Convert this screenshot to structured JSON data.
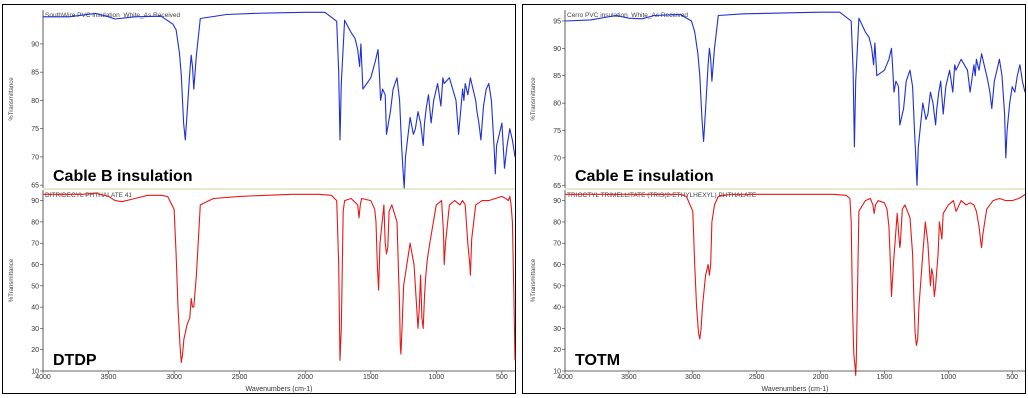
{
  "colors": {
    "top_trace": "#1f2fd6",
    "bottom_trace": "#e81818",
    "separator": "#c8d8a0"
  },
  "chart_data": [
    {
      "type": "line",
      "panel": "left",
      "xlabel": "Wavenumbers (cm-1)",
      "xlim": [
        4000,
        400
      ],
      "xticks": [
        4000,
        3500,
        3000,
        2500,
        2000,
        1500,
        1000,
        500
      ],
      "subplots": [
        {
          "name": "top",
          "trace_title": "SouthWire PVC insulation_White_As Received",
          "label": "Cable B insulation",
          "ylabel": "%Transmittance",
          "ylim": [
            64.5,
            96
          ],
          "yticks": [
            65,
            70,
            75,
            80,
            85,
            90
          ],
          "color": "#1f2fd6",
          "x": [
            4000,
            3800,
            3600,
            3500,
            3450,
            3300,
            3100,
            3010,
            2985,
            2960,
            2945,
            2928,
            2915,
            2900,
            2880,
            2870,
            2860,
            2850,
            2830,
            2800,
            2600,
            2400,
            2200,
            2000,
            1850,
            1760,
            1745,
            1735,
            1725,
            1700,
            1650,
            1620,
            1600,
            1585,
            1575,
            1560,
            1500,
            1465,
            1445,
            1435,
            1425,
            1410,
            1390,
            1380,
            1350,
            1330,
            1300,
            1280,
            1265,
            1255,
            1245,
            1235,
            1200,
            1175,
            1160,
            1140,
            1120,
            1100,
            1090,
            1075,
            1060,
            1040,
            1020,
            990,
            965,
            950,
            940,
            900,
            850,
            830,
            800,
            790,
            780,
            760,
            740,
            720,
            700,
            690,
            675,
            660,
            640,
            620,
            600,
            580,
            560,
            550,
            540,
            520,
            500,
            480,
            460,
            440,
            420,
            400
          ],
          "values": [
            94.8,
            94.8,
            95.4,
            94.8,
            94.4,
            94.8,
            94.9,
            93.5,
            92.5,
            88.5,
            84.5,
            76,
            73,
            78,
            85,
            88,
            86,
            82,
            88,
            94.5,
            95.2,
            95.4,
            95.5,
            95.6,
            95.6,
            94,
            85,
            73,
            83,
            94.2,
            92,
            91,
            89,
            86,
            90,
            82,
            84,
            87,
            89,
            85,
            80,
            82,
            81,
            74,
            78,
            82,
            84,
            80,
            72,
            68,
            64.5,
            70,
            77,
            74,
            75,
            78,
            76,
            72,
            76,
            79,
            81,
            76,
            80,
            83,
            79,
            84,
            83,
            84,
            80,
            74,
            82,
            80,
            83,
            81,
            84,
            82,
            80,
            78,
            76,
            73,
            79,
            82,
            83,
            80,
            72,
            67,
            72,
            74,
            76,
            68,
            72,
            75,
            73,
            70
          ]
        },
        {
          "name": "bottom",
          "trace_title": "DITRIDECYL PHTHALATE 41",
          "label": "DTDP",
          "ylabel": "%Transmittance",
          "ylim": [
            10,
            95
          ],
          "yticks": [
            10,
            20,
            30,
            40,
            50,
            60,
            70,
            80,
            90
          ],
          "color": "#e81818",
          "x": [
            4000,
            3700,
            3600,
            3500,
            3450,
            3400,
            3300,
            3200,
            3100,
            3050,
            3000,
            2985,
            2970,
            2955,
            2945,
            2935,
            2925,
            2900,
            2880,
            2870,
            2860,
            2850,
            2830,
            2800,
            2700,
            2500,
            2300,
            2100,
            2000,
            1900,
            1800,
            1760,
            1745,
            1735,
            1725,
            1710,
            1700,
            1650,
            1600,
            1590,
            1580,
            1570,
            1500,
            1470,
            1460,
            1450,
            1440,
            1430,
            1400,
            1390,
            1380,
            1370,
            1360,
            1340,
            1300,
            1290,
            1280,
            1275,
            1270,
            1260,
            1250,
            1200,
            1170,
            1140,
            1130,
            1120,
            1110,
            1100,
            1090,
            1080,
            1070,
            1050,
            1000,
            960,
            945,
            940,
            930,
            900,
            860,
            820,
            800,
            780,
            760,
            745,
            740,
            730,
            700,
            650,
            600,
            550,
            500,
            470,
            450,
            440,
            430,
            420,
            410,
            400
          ],
          "values": [
            93,
            93,
            93.5,
            92,
            90,
            89.5,
            91,
            92.5,
            92.5,
            92,
            86,
            65,
            40,
            22,
            14,
            18,
            25,
            32,
            35,
            44,
            40,
            40,
            55,
            88,
            91,
            92,
            92.5,
            93,
            93,
            93,
            92.5,
            90,
            60,
            15,
            30,
            85,
            90,
            91,
            88,
            82,
            88,
            91,
            90,
            86,
            80,
            60,
            48,
            70,
            88,
            70,
            65,
            68,
            85,
            88,
            80,
            60,
            40,
            22,
            18,
            32,
            50,
            70,
            60,
            30,
            40,
            55,
            35,
            30,
            45,
            55,
            62,
            70,
            88,
            90,
            75,
            60,
            70,
            88,
            90,
            88,
            90,
            88,
            70,
            60,
            55,
            72,
            88,
            90,
            90,
            91,
            92,
            91,
            90,
            92,
            88,
            80,
            50,
            15
          ]
        }
      ]
    },
    {
      "type": "line",
      "panel": "right",
      "xlabel": "Wavenumbers (cm-1)",
      "xlim": [
        4000,
        400
      ],
      "xticks": [
        4000,
        3500,
        3000,
        2500,
        2000,
        1500,
        1000,
        500
      ],
      "subplots": [
        {
          "name": "top",
          "trace_title": "Cerro PVC insulation_White_As Received",
          "label": "Cable E insulation",
          "ylabel": "%Transmittance",
          "ylim": [
            64.5,
            97
          ],
          "yticks": [
            65,
            70,
            75,
            80,
            85,
            90,
            95
          ],
          "color": "#1f2fd6",
          "x": [
            4000,
            3800,
            3600,
            3500,
            3400,
            3300,
            3100,
            3010,
            2985,
            2960,
            2945,
            2928,
            2915,
            2900,
            2880,
            2870,
            2860,
            2850,
            2830,
            2800,
            2600,
            2400,
            2200,
            2000,
            1850,
            1760,
            1745,
            1735,
            1725,
            1700,
            1650,
            1620,
            1600,
            1585,
            1575,
            1560,
            1500,
            1465,
            1445,
            1435,
            1425,
            1410,
            1390,
            1380,
            1350,
            1330,
            1300,
            1280,
            1265,
            1255,
            1245,
            1235,
            1200,
            1175,
            1160,
            1140,
            1120,
            1100,
            1090,
            1075,
            1060,
            1040,
            1020,
            990,
            965,
            950,
            940,
            900,
            850,
            830,
            800,
            790,
            780,
            760,
            740,
            720,
            700,
            690,
            675,
            660,
            640,
            620,
            600,
            580,
            560,
            550,
            540,
            520,
            500,
            480,
            460,
            440,
            420,
            400
          ],
          "values": [
            95,
            95.2,
            96,
            95.5,
            95.4,
            96,
            96.2,
            95,
            93,
            89,
            85,
            77,
            73,
            79,
            87,
            90,
            88,
            84,
            90,
            96,
            96.3,
            96.4,
            96.5,
            96.6,
            96.6,
            95,
            86,
            72,
            84,
            95.5,
            93,
            92,
            90,
            87,
            91,
            85,
            86,
            88,
            90,
            86,
            82,
            84,
            83,
            76,
            79,
            84,
            86,
            83,
            75,
            70,
            65,
            72,
            80,
            77,
            78,
            82,
            80,
            76,
            79,
            82,
            84,
            78,
            83,
            86,
            82,
            87,
            86,
            88,
            86,
            82,
            87,
            85,
            88,
            86,
            89,
            87,
            85,
            84,
            82,
            79,
            84,
            86,
            88,
            85,
            78,
            70,
            75,
            80,
            83,
            82,
            85,
            87,
            84,
            82
          ]
        },
        {
          "name": "bottom",
          "trace_title": "TRIOCTYL TRIMELLITATE (TRIS(2-ETHYLHEXYL) PHTHALATE",
          "label": "TOTM",
          "ylabel": "%Transmittance",
          "ylim": [
            10,
            95
          ],
          "yticks": [
            10,
            20,
            30,
            40,
            50,
            60,
            70,
            80,
            90
          ],
          "color": "#e81818",
          "x": [
            4000,
            3700,
            3500,
            3300,
            3100,
            3050,
            3000,
            2985,
            2970,
            2955,
            2945,
            2935,
            2925,
            2900,
            2880,
            2870,
            2860,
            2850,
            2830,
            2800,
            2700,
            2500,
            2300,
            2100,
            1900,
            1800,
            1770,
            1760,
            1750,
            1740,
            1730,
            1725,
            1720,
            1710,
            1700,
            1650,
            1610,
            1590,
            1580,
            1570,
            1550,
            1500,
            1480,
            1465,
            1460,
            1450,
            1445,
            1430,
            1400,
            1385,
            1380,
            1375,
            1360,
            1340,
            1300,
            1280,
            1270,
            1260,
            1250,
            1240,
            1230,
            1200,
            1180,
            1160,
            1140,
            1130,
            1120,
            1110,
            1100,
            1080,
            1070,
            1060,
            1050,
            1040,
            1020,
            1000,
            960,
            940,
            930,
            900,
            860,
            830,
            800,
            780,
            760,
            745,
            740,
            730,
            700,
            650,
            600,
            550,
            500,
            450,
            420,
            400
          ],
          "values": [
            93,
            93,
            93,
            93,
            93,
            92,
            85,
            60,
            40,
            28,
            25,
            30,
            40,
            55,
            60,
            55,
            60,
            80,
            88,
            92,
            93,
            93,
            93,
            93,
            93,
            92.5,
            91,
            80,
            40,
            18,
            12,
            8,
            15,
            50,
            85,
            90,
            91,
            88,
            84,
            88,
            90,
            89,
            86,
            78,
            70,
            55,
            45,
            60,
            84,
            72,
            68,
            70,
            86,
            88,
            82,
            65,
            45,
            28,
            22,
            25,
            40,
            65,
            80,
            70,
            50,
            58,
            55,
            45,
            50,
            65,
            80,
            76,
            72,
            84,
            86,
            88,
            90,
            85,
            86,
            90,
            88,
            89,
            88,
            85,
            78,
            70,
            68,
            74,
            86,
            90,
            91,
            90,
            90,
            91,
            92,
            93
          ]
        }
      ]
    }
  ]
}
